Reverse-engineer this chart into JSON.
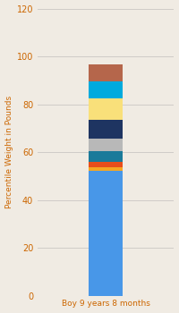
{
  "category": "Boy 9 years 8 months",
  "segments": [
    {
      "value": 52,
      "color": "#4897e8"
    },
    {
      "value": 1.5,
      "color": "#f5a623"
    },
    {
      "value": 2.5,
      "color": "#e84e1b"
    },
    {
      "value": 4.5,
      "color": "#1a7a9a"
    },
    {
      "value": 5,
      "color": "#b8b8b8"
    },
    {
      "value": 8,
      "color": "#1e3461"
    },
    {
      "value": 9,
      "color": "#f9e07a"
    },
    {
      "value": 7,
      "color": "#00aadd"
    },
    {
      "value": 7,
      "color": "#b5664b"
    }
  ],
  "ylim": [
    0,
    120
  ],
  "yticks": [
    0,
    20,
    40,
    60,
    80,
    100,
    120
  ],
  "ylabel": "Percentile Weight in Pounds",
  "background_color": "#f0ebe3",
  "grid_color": "#d0ccc8",
  "tick_color": "#cc6600",
  "label_color": "#cc6600",
  "bar_width": 0.35
}
